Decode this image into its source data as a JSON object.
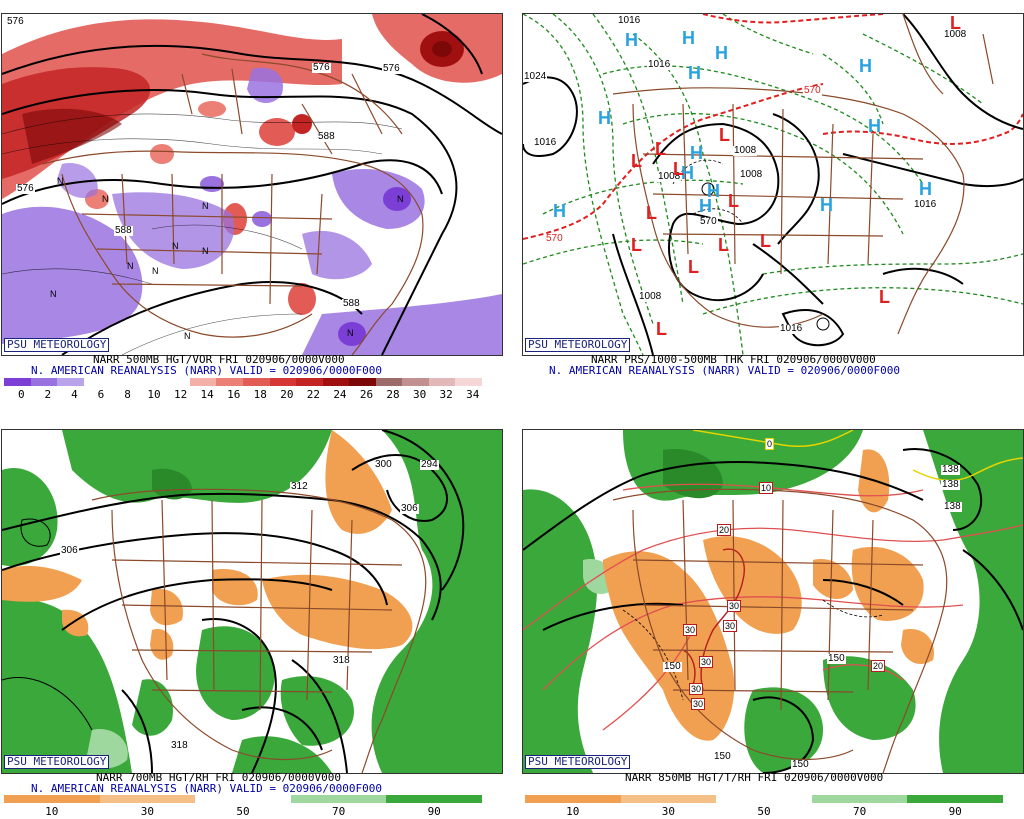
{
  "branding": "PSU METEOROLOGY",
  "panels": [
    {
      "id": "p1",
      "caption_line1": "NARR 500MB HGT/VOR FRI 020906/0000V000",
      "caption_line2": "N. AMERICAN REANALYSIS (NARR) VALID = 020906/0000F000",
      "contour_labels": [
        "576",
        "576",
        "576",
        "588",
        "588",
        "576",
        "588"
      ],
      "scale": {
        "labels": [
          "0",
          "2",
          "4",
          "6",
          "8",
          "10",
          "12",
          "14",
          "16",
          "18",
          "20",
          "22",
          "24",
          "26",
          "28",
          "30",
          "32",
          "34"
        ],
        "colors": [
          "#7b3fd6",
          "#9a72e0",
          "#b9a3ea",
          "#ffffff",
          "#ffffff",
          "#ffffff",
          "#ffffff",
          "#f4b0a8",
          "#ec8077",
          "#e25b55",
          "#d63838",
          "#c32424",
          "#a11010",
          "#7d0808",
          "#9e6b6b",
          "#c29090",
          "#e2b8b8",
          "#f5d7d7"
        ]
      }
    },
    {
      "id": "p2",
      "caption_line1": "NARR PRS/1000-500MB THK FRI 020906/0000V000",
      "caption_line2": "N. AMERICAN REANALYSIS (NARR) VALID = 020906/0000F000",
      "contour_labels": [
        "1016",
        "1016",
        "1016",
        "1024",
        "1008",
        "1008",
        "1008",
        "1016",
        "1008",
        "1016",
        "1008",
        "570",
        "570",
        "570"
      ]
    },
    {
      "id": "p3",
      "caption_line1": "NARR 700MB HGT/RH FRI 020906/0000V000",
      "caption_line2": "N. AMERICAN REANALYSIS (NARR) VALID = 020906/0000F000",
      "contour_labels": [
        "312",
        "306",
        "300",
        "294",
        "306",
        "318",
        "318"
      ],
      "scale": {
        "labels": [
          "10",
          "30",
          "50",
          "70",
          "90"
        ],
        "colors": [
          "#f0a050",
          "#f4c088",
          "#ffffff",
          "#9ed89e",
          "#3aa83a"
        ]
      }
    },
    {
      "id": "p4",
      "caption_line1": "NARR 850MB HGT/T/RH FRI 020906/0000V000",
      "contour_labels": [
        "150",
        "150",
        "150",
        "150",
        "138",
        "138",
        "138"
      ],
      "temp_labels": [
        "0",
        "10",
        "20",
        "20",
        "30",
        "30",
        "30",
        "30",
        "30",
        "30"
      ],
      "scale": {
        "labels": [
          "10",
          "30",
          "50",
          "70",
          "90"
        ],
        "colors": [
          "#f0a050",
          "#f4c088",
          "#ffffff",
          "#9ed89e",
          "#3aa83a"
        ]
      }
    }
  ],
  "highs": [
    "H",
    "H",
    "H",
    "H",
    "H",
    "H",
    "H",
    "H",
    "H",
    "H",
    "H",
    "H",
    "H",
    "H"
  ],
  "lows": [
    "L",
    "L",
    "L",
    "L",
    "L",
    "L",
    "L",
    "L",
    "L",
    "L",
    "L",
    "L",
    "L"
  ],
  "colors": {
    "border": "#8b4a2b",
    "high": "#29a3e0",
    "low": "#e02020",
    "thickness": "#e02020",
    "isobar_green": "#1e8a1e",
    "moist": "#3aa83a",
    "dry": "#f0a050",
    "vort_neg": "#7b3fd6",
    "vort_pos": "#d63838",
    "caption_blue": "#0000aa"
  }
}
